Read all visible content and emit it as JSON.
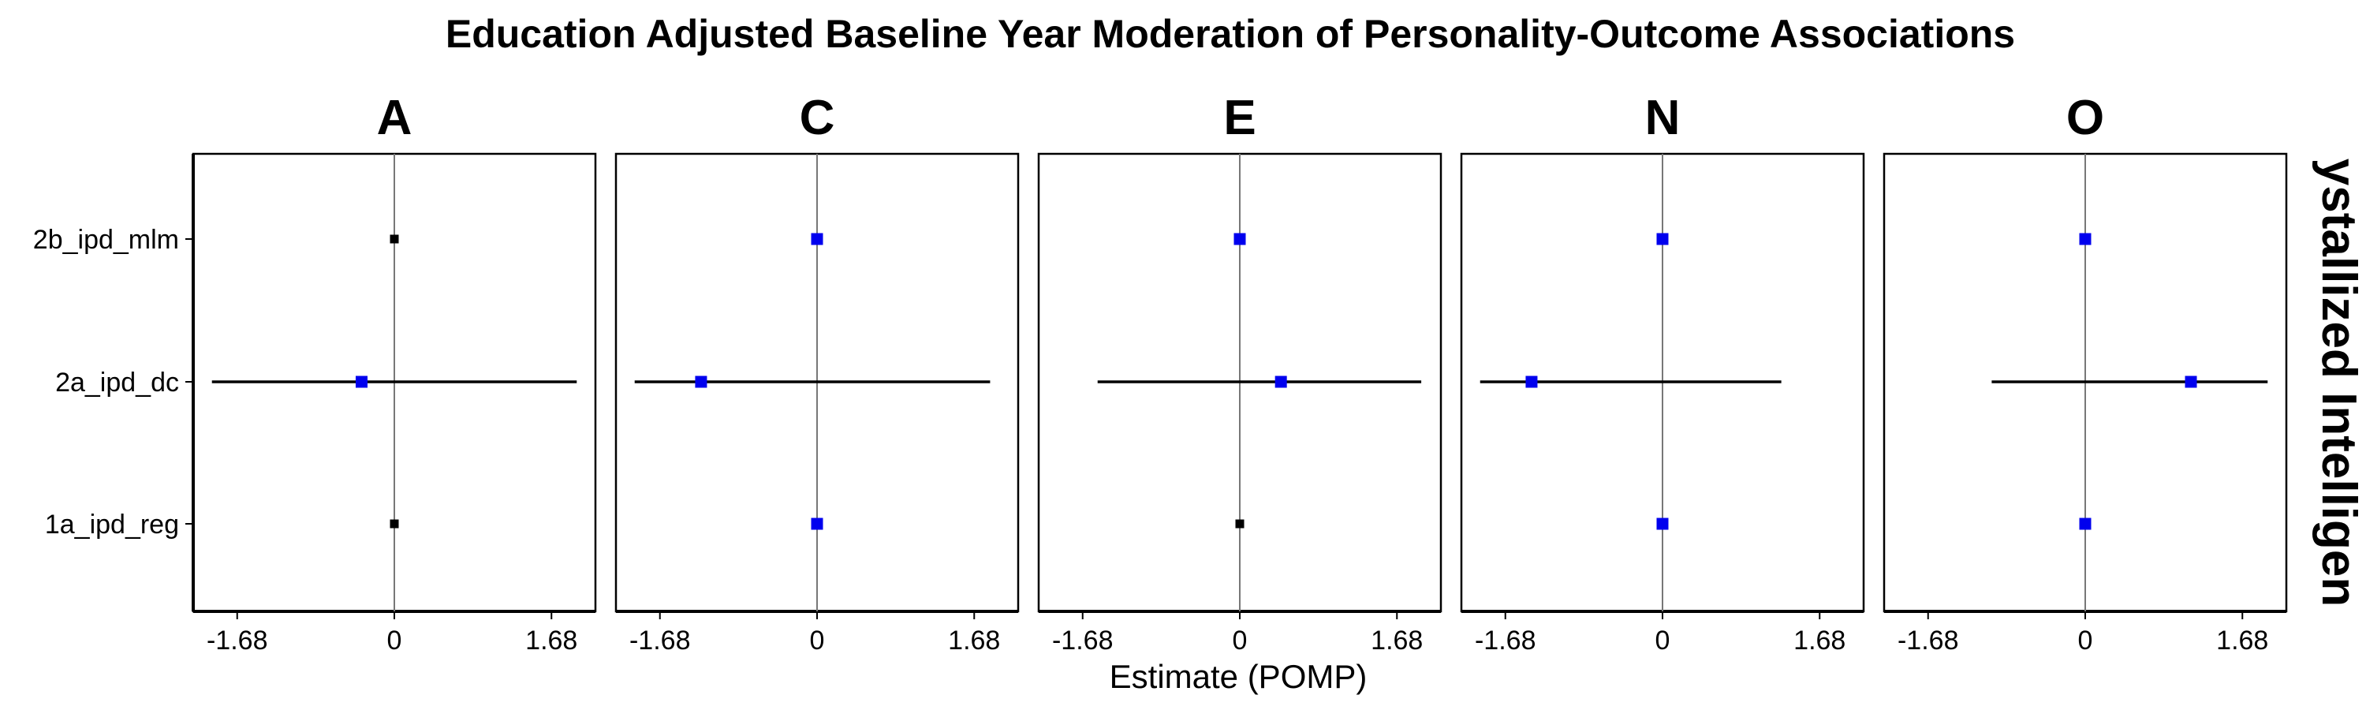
{
  "chart_data": {
    "type": "forest-plot",
    "title": "Education Adjusted Baseline Year Moderation of Personality-Outcome Associations",
    "xlabel": "Estimate (POMP)",
    "strip_label": "ystallized Intelligen",
    "y_categories": [
      "2b_ipd_mlm",
      "2a_ipd_dc",
      "1a_ipd_reg"
    ],
    "x_ticks": [
      -1.68,
      0,
      1.68
    ],
    "x_tick_labels": [
      "-1.68",
      "0",
      "1.68"
    ],
    "xlim": [
      -2.15,
      2.15
    ],
    "reference_line": 0,
    "colors": {
      "significant": "#0000ee",
      "nonsignificant": "#000000",
      "reference": "#777777",
      "ci": "#000000"
    },
    "facets": [
      {
        "name": "A",
        "points": [
          {
            "model": "2b_ipd_mlm",
            "estimate": 0.0,
            "lower": 0.0,
            "upper": 0.0,
            "significant": false
          },
          {
            "model": "2a_ipd_dc",
            "estimate": -0.35,
            "lower": -1.95,
            "upper": 1.95,
            "significant": true
          },
          {
            "model": "1a_ipd_reg",
            "estimate": 0.0,
            "lower": 0.0,
            "upper": 0.0,
            "significant": false
          }
        ]
      },
      {
        "name": "C",
        "points": [
          {
            "model": "2b_ipd_mlm",
            "estimate": 0.0,
            "lower": 0.0,
            "upper": 0.0,
            "significant": true
          },
          {
            "model": "2a_ipd_dc",
            "estimate": -1.24,
            "lower": -1.95,
            "upper": 1.85,
            "significant": true
          },
          {
            "model": "1a_ipd_reg",
            "estimate": 0.0,
            "lower": 0.0,
            "upper": 0.0,
            "significant": true
          }
        ]
      },
      {
        "name": "E",
        "points": [
          {
            "model": "2b_ipd_mlm",
            "estimate": 0.0,
            "lower": 0.0,
            "upper": 0.0,
            "significant": true
          },
          {
            "model": "2a_ipd_dc",
            "estimate": 0.44,
            "lower": -1.52,
            "upper": 1.94,
            "significant": true
          },
          {
            "model": "1a_ipd_reg",
            "estimate": 0.0,
            "lower": 0.0,
            "upper": 0.0,
            "significant": false
          }
        ]
      },
      {
        "name": "N",
        "points": [
          {
            "model": "2b_ipd_mlm",
            "estimate": 0.0,
            "lower": 0.0,
            "upper": 0.0,
            "significant": true
          },
          {
            "model": "2a_ipd_dc",
            "estimate": -1.4,
            "lower": -1.95,
            "upper": 1.27,
            "significant": true
          },
          {
            "model": "1a_ipd_reg",
            "estimate": 0.0,
            "lower": 0.0,
            "upper": 0.0,
            "significant": true
          }
        ]
      },
      {
        "name": "O",
        "points": [
          {
            "model": "2b_ipd_mlm",
            "estimate": 0.0,
            "lower": 0.0,
            "upper": 0.0,
            "significant": true
          },
          {
            "model": "2a_ipd_dc",
            "estimate": 1.13,
            "lower": -1.0,
            "upper": 1.95,
            "significant": true
          },
          {
            "model": "1a_ipd_reg",
            "estimate": 0.0,
            "lower": 0.0,
            "upper": 0.0,
            "significant": true
          }
        ]
      }
    ]
  }
}
